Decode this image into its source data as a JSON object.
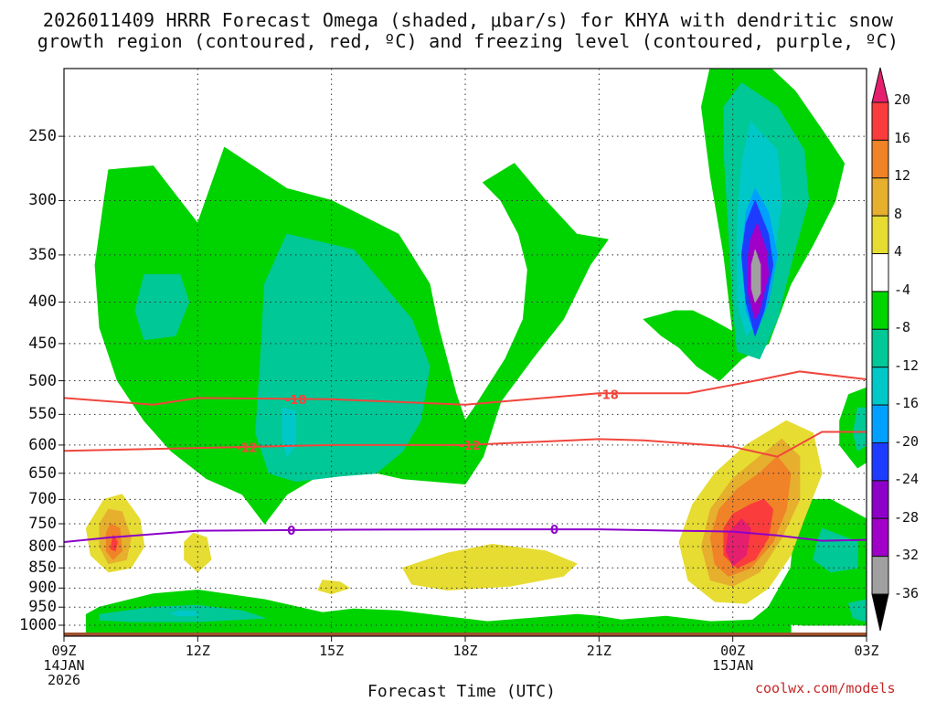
{
  "title_line1": "2026011409 HRRR Forecast Omega (shaded, μbar/s) for KHYA with dendritic snow",
  "title_line2": "growth region (contoured, red, ºC) and freezing level (contoured, purple, ºC)",
  "xlabel": "Forecast Time (UTC)",
  "credit": "coolwx.com/models",
  "colors": {
    "green": "#00d400",
    "teal": "#00c896",
    "cyan": "#00c8c8",
    "lightblue": "#00a0ff",
    "blue": "#1e3cff",
    "purple": "#a000c8",
    "gray": "#a0a0a0",
    "yellow": "#e6dc32",
    "gold": "#e6af2d",
    "orange": "#f08228",
    "red": "#fa3c3c",
    "magenta": "#e61e6e",
    "ground": "#a0522d",
    "dgz_line": "#f0463c",
    "freezing_line": "#8c00c8"
  },
  "chart_data": {
    "type": "time-height contour",
    "title": "2026011409 HRRR Forecast Omega (shaded, μbar/s) for KHYA with dendritic snow growth region (contoured, red, ºC) and freezing level (contoured, purple, ºC)",
    "xlabel": "Forecast Time (UTC)",
    "ylabel": "",
    "y_levels": [
      250,
      300,
      350,
      400,
      450,
      500,
      550,
      600,
      650,
      700,
      750,
      800,
      850,
      900,
      950,
      1000
    ],
    "y_scale": "log-pressure, inverted",
    "x_ticks": [
      {
        "label": "09Z",
        "sub1": "14JAN",
        "sub2": "2026",
        "hour": 0
      },
      {
        "label": "12Z",
        "sub1": "",
        "sub2": "",
        "hour": 3
      },
      {
        "label": "15Z",
        "sub1": "",
        "sub2": "",
        "hour": 6
      },
      {
        "label": "18Z",
        "sub1": "",
        "sub2": "",
        "hour": 9
      },
      {
        "label": "21Z",
        "sub1": "",
        "sub2": "",
        "hour": 12
      },
      {
        "label": "00Z",
        "sub1": "15JAN",
        "sub2": "",
        "hour": 15
      },
      {
        "label": "03Z",
        "sub1": "",
        "sub2": "",
        "hour": 18
      }
    ],
    "xlim": [
      0,
      18
    ],
    "ylim": [
      1000,
      200
    ],
    "grid": true,
    "colorbar": {
      "labels": [
        "20",
        "16",
        "12",
        "8",
        "4",
        "-4",
        "-8",
        "-12",
        "-16",
        "-20",
        "-24",
        "-28",
        "-32",
        "-36"
      ],
      "values": [
        20,
        16,
        12,
        8,
        4,
        -4,
        -8,
        -12,
        -16,
        -20,
        -24,
        -28,
        -32,
        -36
      ]
    },
    "contours": [
      {
        "label": "-18",
        "points": [
          [
            0,
            525
          ],
          [
            2,
            535
          ],
          [
            3,
            525
          ],
          [
            6,
            527
          ],
          [
            9,
            535
          ],
          [
            12,
            518
          ],
          [
            14,
            518
          ],
          [
            15.5,
            500
          ],
          [
            16.5,
            487
          ],
          [
            18,
            498
          ]
        ]
      },
      {
        "label": "-12",
        "points": [
          [
            0,
            610
          ],
          [
            3,
            605
          ],
          [
            6,
            600
          ],
          [
            9,
            600
          ],
          [
            12,
            590
          ],
          [
            13,
            592
          ],
          [
            15,
            603
          ],
          [
            16,
            620
          ],
          [
            17,
            578
          ],
          [
            18,
            578
          ]
        ]
      },
      {
        "label": "0",
        "points": [
          [
            0,
            790
          ],
          [
            1,
            780
          ],
          [
            3,
            765
          ],
          [
            6,
            763
          ],
          [
            9,
            762
          ],
          [
            12,
            762
          ],
          [
            15,
            767
          ],
          [
            16,
            775
          ],
          [
            17,
            787
          ],
          [
            18,
            785
          ]
        ]
      }
    ],
    "contour_labels": [
      {
        "label": "-18",
        "x": 5.2,
        "p": 527
      },
      {
        "label": "-12",
        "x": 4.1,
        "p": 604
      },
      {
        "label": "-12",
        "x": 9.1,
        "p": 600
      },
      {
        "label": "-18",
        "x": 12.2,
        "p": 520
      },
      {
        "label": "0",
        "x": 5.1,
        "p": 764
      },
      {
        "label": "0",
        "x": 11.0,
        "p": 762
      }
    ]
  }
}
